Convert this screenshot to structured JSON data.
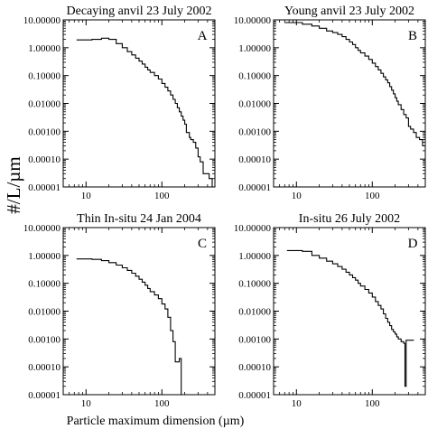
{
  "figure": {
    "ylabel": "#/L/µm",
    "xlabel": "Particle maximum dimension (µm)"
  },
  "chart_data": [
    {
      "type": "line",
      "title": "Decaying anvil 23 July 2002",
      "panel_letter": "A",
      "xscale": "log",
      "yscale": "log",
      "xlim": [
        5,
        500
      ],
      "ylim": [
        1e-05,
        10
      ],
      "x_ticks": [
        10,
        100
      ],
      "y_ticks": [
        10,
        1,
        0.1,
        0.01,
        0.001,
        0.0001,
        1e-05
      ],
      "x_tick_labels": [
        "10",
        "100"
      ],
      "y_tick_labels": [
        "10.00000",
        "1.00000",
        "0.10000",
        "0.01000",
        "0.00100",
        "0.00010",
        "0.00001"
      ],
      "series": [
        {
          "x": [
            7.5,
            12,
            16,
            20,
            25,
            30,
            35,
            40,
            45,
            50,
            55,
            60,
            65,
            70,
            80,
            90,
            100,
            110,
            120,
            130,
            140,
            150,
            160,
            170,
            180,
            190,
            200,
            210,
            220,
            230,
            240,
            250,
            260,
            280,
            300,
            320,
            350,
            380,
            420,
            460
          ],
          "y": [
            1.9,
            2.0,
            2.2,
            2.0,
            1.4,
            1.0,
            0.72,
            0.55,
            0.42,
            0.33,
            0.26,
            0.2,
            0.16,
            0.13,
            0.1,
            0.075,
            0.052,
            0.038,
            0.028,
            0.02,
            0.014,
            0.01,
            0.007,
            0.005,
            0.0035,
            0.0025,
            0.0018,
            0.0009,
            0.0009,
            0.0006,
            0.0005,
            0.0005,
            0.0004,
            0.00025,
            0.00012,
            8e-05,
            3e-05,
            3e-05,
            2e-05,
            1e-05
          ]
        }
      ]
    },
    {
      "type": "line",
      "title": "Young anvil 23 July 2002",
      "panel_letter": "B",
      "xscale": "log",
      "yscale": "log",
      "xlim": [
        5,
        500
      ],
      "ylim": [
        1e-05,
        10
      ],
      "x_ticks": [
        10,
        100
      ],
      "y_ticks": [
        10,
        1,
        0.1,
        0.01,
        0.001,
        0.0001,
        1e-05
      ],
      "x_tick_labels": [
        "10",
        "100"
      ],
      "y_tick_labels": [
        "10.00000",
        "1.00000",
        "0.10000",
        "0.01000",
        "0.00100",
        "0.00010",
        "0.00001"
      ],
      "series": [
        {
          "x": [
            7,
            12,
            16,
            20,
            25,
            30,
            35,
            40,
            45,
            50,
            55,
            60,
            65,
            70,
            80,
            90,
            100,
            110,
            120,
            130,
            140,
            150,
            160,
            170,
            180,
            190,
            200,
            210,
            220,
            240,
            260,
            280,
            300,
            320,
            350,
            380,
            420,
            460
          ],
          "y": [
            8,
            7,
            6,
            5,
            4,
            3.5,
            3,
            2.5,
            2,
            1.6,
            1.3,
            1.0,
            0.8,
            0.65,
            0.5,
            0.38,
            0.28,
            0.21,
            0.16,
            0.12,
            0.09,
            0.07,
            0.055,
            0.04,
            0.03,
            0.022,
            0.016,
            0.012,
            0.009,
            0.006,
            0.004,
            0.003,
            0.0015,
            0.0012,
            0.0009,
            0.0006,
            0.0005,
            0.0003
          ]
        }
      ]
    },
    {
      "type": "line",
      "title": "Thin In-situ 24 Jan 2004",
      "panel_letter": "C",
      "xscale": "log",
      "yscale": "log",
      "xlim": [
        5,
        500
      ],
      "ylim": [
        1e-05,
        10
      ],
      "x_ticks": [
        10,
        100
      ],
      "y_ticks": [
        10,
        1,
        0.1,
        0.01,
        0.001,
        0.0001,
        1e-05
      ],
      "x_tick_labels": [
        "10",
        "100"
      ],
      "y_tick_labels": [
        "10.00000",
        "1.00000",
        "0.10000",
        "0.01000",
        "0.00100",
        "0.00010",
        "0.00001"
      ],
      "series": [
        {
          "x": [
            7.5,
            12,
            16,
            20,
            25,
            30,
            35,
            40,
            45,
            50,
            55,
            60,
            65,
            70,
            80,
            90,
            100,
            110,
            120,
            130,
            140,
            150,
            160,
            170,
            180,
            190
          ],
          "y": [
            0.75,
            0.72,
            0.65,
            0.55,
            0.45,
            0.36,
            0.29,
            0.23,
            0.18,
            0.14,
            0.11,
            0.085,
            0.065,
            0.05,
            0.038,
            0.028,
            0.018,
            0.012,
            0.006,
            0.002,
            0.0008,
            0.00015,
            0.00015,
            0.0002,
            1e-05,
            1e-05
          ]
        }
      ]
    },
    {
      "type": "line",
      "title": "In-situ 26 July 2002",
      "panel_letter": "D",
      "xscale": "log",
      "yscale": "log",
      "xlim": [
        5,
        500
      ],
      "ylim": [
        1e-05,
        10
      ],
      "x_ticks": [
        10,
        100
      ],
      "y_ticks": [
        10,
        1,
        0.1,
        0.01,
        0.001,
        0.0001,
        1e-05
      ],
      "x_tick_labels": [
        "10",
        "100"
      ],
      "y_tick_labels": [
        "10.00000",
        "1.00000",
        "0.10000",
        "0.01000",
        "0.00100",
        "0.00010",
        "0.00001"
      ],
      "series": [
        {
          "x": [
            7.5,
            12,
            16,
            20,
            25,
            30,
            35,
            40,
            45,
            50,
            55,
            60,
            65,
            70,
            80,
            90,
            100,
            110,
            120,
            130,
            140,
            150,
            160,
            170,
            180,
            190,
            200,
            210,
            220,
            240,
            260,
            270,
            280,
            300
          ],
          "y": [
            1.5,
            1.4,
            1.0,
            0.8,
            0.62,
            0.5,
            0.4,
            0.32,
            0.25,
            0.2,
            0.16,
            0.13,
            0.1,
            0.08,
            0.06,
            0.045,
            0.032,
            0.022,
            0.016,
            0.012,
            0.008,
            0.0055,
            0.004,
            0.003,
            0.0022,
            0.0018,
            0.0015,
            0.0012,
            0.001,
            0.0008,
            0.0007,
            2e-05,
            0.0009,
            0.0009
          ]
        }
      ]
    }
  ]
}
